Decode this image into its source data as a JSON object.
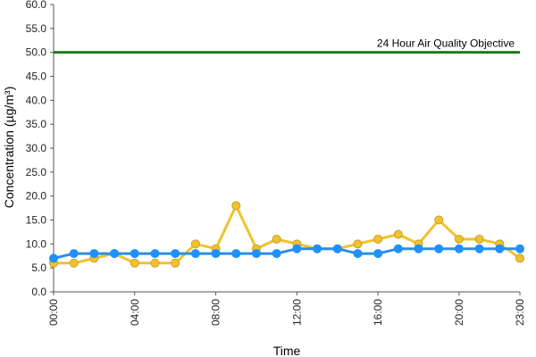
{
  "chart_data": {
    "type": "line",
    "xlabel": "Time",
    "ylabel": "Concentration (µg/m³)",
    "ylim": [
      0,
      60
    ],
    "y_ticks": [
      "0.0",
      "5.0",
      "10.0",
      "15.0",
      "20.0",
      "25.0",
      "30.0",
      "35.0",
      "40.0",
      "45.0",
      "50.0",
      "55.0",
      "60.0"
    ],
    "x": [
      "00:00",
      "01:00",
      "02:00",
      "03:00",
      "04:00",
      "05:00",
      "06:00",
      "07:00",
      "08:00",
      "09:00",
      "10:00",
      "11:00",
      "12:00",
      "13:00",
      "14:00",
      "15:00",
      "16:00",
      "17:00",
      "18:00",
      "19:00",
      "20:00",
      "21:00",
      "22:00",
      "23:00"
    ],
    "x_tick_labels": [
      "00:00",
      "04:00",
      "08:00",
      "12:00",
      "16:00",
      "20:00",
      "23:00"
    ],
    "grid": false,
    "series": [
      {
        "color": "#F2C12E",
        "marker_fill": "#F2C12E",
        "marker_stroke": "#C9A227",
        "values": [
          6,
          6,
          7,
          8,
          6,
          6,
          6,
          10,
          9,
          18,
          9,
          11,
          10,
          9,
          9,
          10,
          11,
          12,
          10,
          15,
          11,
          11,
          10,
          7
        ]
      },
      {
        "color": "#2B8FE0",
        "marker_fill": "#1E90FF",
        "marker_stroke": "#1E90FF",
        "values": [
          7,
          8,
          8,
          8,
          8,
          8,
          8,
          8,
          8,
          8,
          8,
          8,
          9,
          9,
          9,
          8,
          8,
          9,
          9,
          9,
          9,
          9,
          9,
          9
        ]
      }
    ],
    "reference_line": {
      "value": 50,
      "label": "24 Hour Air Quality Objective",
      "color": "#1E7B1E"
    }
  }
}
